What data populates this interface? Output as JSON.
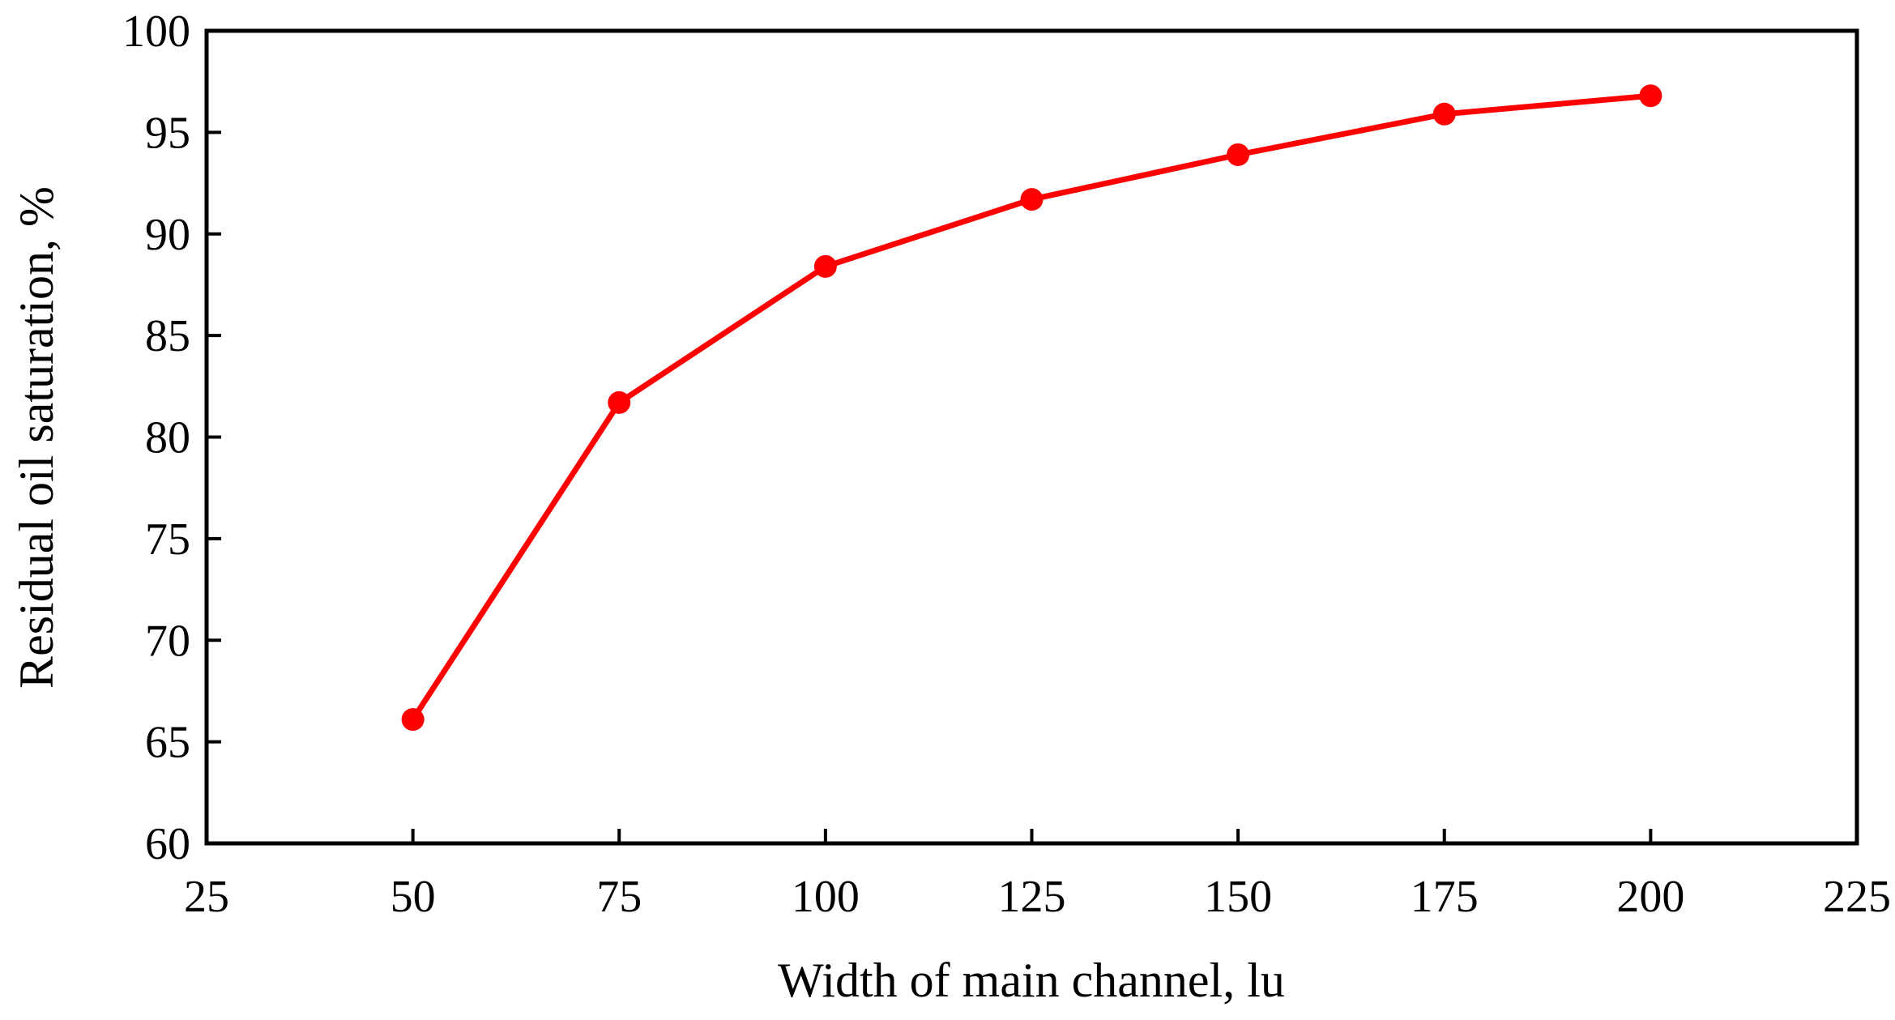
{
  "chart_data": {
    "type": "line",
    "title": "",
    "xlabel": "Width of main channel, lu",
    "ylabel": "Residual oil saturation, %",
    "xlim": [
      25,
      225
    ],
    "ylim": [
      60,
      100
    ],
    "x_ticks": [
      25,
      50,
      75,
      100,
      125,
      150,
      175,
      200,
      225
    ],
    "y_ticks": [
      60,
      65,
      70,
      75,
      80,
      85,
      90,
      95,
      100
    ],
    "grid": false,
    "legend": "none",
    "series": [
      {
        "color": "#ff0000",
        "marker": "circle",
        "x": [
          50,
          75,
          100,
          125,
          150,
          175,
          200
        ],
        "y": [
          66.1,
          81.7,
          88.4,
          91.7,
          93.9,
          95.9,
          96.8
        ]
      }
    ]
  }
}
